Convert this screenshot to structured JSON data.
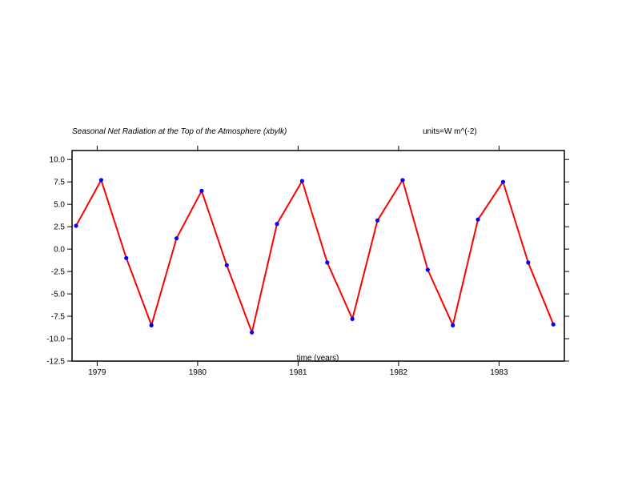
{
  "chart_data": {
    "type": "line",
    "title": "Seasonal Net Radiation at the Top of the Atmosphere (xbylk)",
    "units_label": "units=W m^(-2)",
    "xlabel": "time (years)",
    "ylabel": "",
    "x_ticks": [
      "1979",
      "1980",
      "1981",
      "1982",
      "1983"
    ],
    "y_ticks": [
      "10.0",
      "7.5",
      "5.0",
      "2.5",
      "0.0",
      "-2.5",
      "-5.0",
      "-7.5",
      "-10.0",
      "-12.5"
    ],
    "xlim": [
      1978.75,
      1983.65
    ],
    "ylim": [
      -12.5,
      11.0
    ],
    "grid": false,
    "series": [
      {
        "x": [
          1978.79,
          1979.04,
          1979.29,
          1979.54,
          1979.79,
          1980.04,
          1980.29,
          1980.54,
          1980.79,
          1981.04,
          1981.29,
          1981.54,
          1981.79,
          1982.04,
          1982.29,
          1982.54,
          1982.79,
          1983.04,
          1983.29,
          1983.54
        ],
        "values": [
          2.6,
          7.7,
          -1.0,
          -8.5,
          1.2,
          6.5,
          -1.8,
          -9.3,
          2.8,
          7.6,
          -1.5,
          -7.8,
          3.2,
          7.7,
          -2.3,
          -8.5,
          3.3,
          7.5,
          -1.5,
          -8.4
        ]
      }
    ],
    "colors": {
      "line": "#ff0000",
      "markers": "#0000ff",
      "axes": "#000000"
    }
  }
}
